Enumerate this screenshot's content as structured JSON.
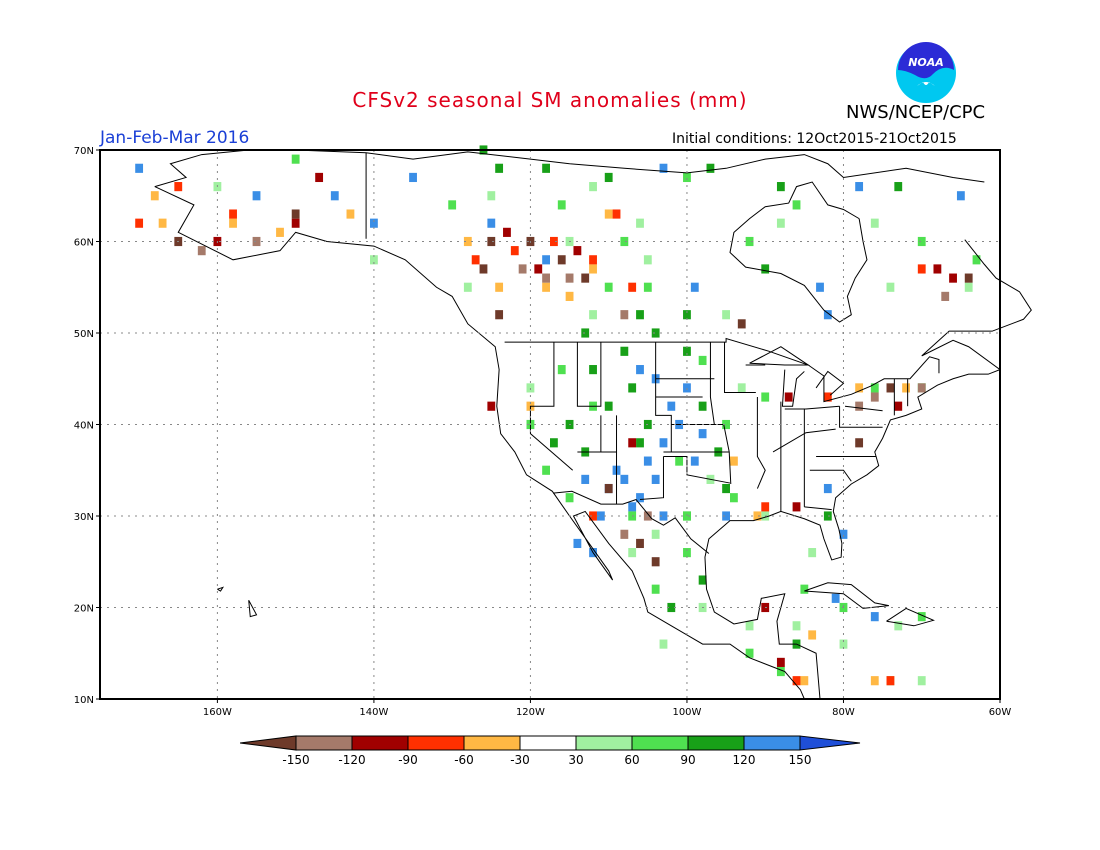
{
  "title": "CFSv2 seasonal SM anomalies (mm)",
  "agency": "NWS/NCEP/CPC",
  "period": "Jan-Feb-Mar 2016",
  "initial_conditions": "Initial conditions: 12Oct2015-21Oct2015",
  "logo_text": "NOAA",
  "map": {
    "lon_range": [
      -175,
      -60
    ],
    "lat_range": [
      10,
      70
    ],
    "lat_ticks": [
      "10N",
      "20N",
      "30N",
      "40N",
      "50N",
      "60N",
      "70N"
    ],
    "lon_ticks": [
      "160W",
      "140W",
      "120W",
      "100W",
      "80W",
      "60W"
    ],
    "grid": "dotted"
  },
  "legend": {
    "labels": [
      "-150",
      "-120",
      "-90",
      "-60",
      "-30",
      "30",
      "60",
      "90",
      "120",
      "150"
    ],
    "colors": [
      "#6e3a2a",
      "#a57a6a",
      "#a00000",
      "#ff3000",
      "#ffb844",
      "#ffffff",
      "#a0f0a0",
      "#4fe050",
      "#18a018",
      "#3a8ee6",
      "#1f4fd8"
    ]
  },
  "anomaly_regions": [
    {
      "color": "#3a8ee6",
      "cells": [
        [
          -107,
          31
        ],
        [
          -106,
          32
        ],
        [
          -108,
          34
        ],
        [
          -105,
          36
        ],
        [
          -103,
          38
        ],
        [
          -101,
          40
        ],
        [
          -102,
          42
        ],
        [
          -100,
          44
        ],
        [
          -104,
          45
        ],
        [
          -109,
          35
        ],
        [
          -110,
          33
        ],
        [
          -111,
          30
        ],
        [
          -104,
          34
        ],
        [
          -98,
          39
        ],
        [
          -99,
          36
        ],
        [
          -106,
          46
        ],
        [
          -112,
          26
        ],
        [
          -114,
          27
        ],
        [
          -113,
          34
        ],
        [
          -103,
          30
        ],
        [
          -95,
          30
        ],
        [
          -82,
          33
        ],
        [
          -80,
          28
        ],
        [
          -76,
          19
        ],
        [
          -81,
          21
        ],
        [
          -82,
          52
        ],
        [
          -83,
          55
        ],
        [
          -99,
          55
        ],
        [
          -140,
          62
        ],
        [
          -125,
          62
        ],
        [
          -118,
          58
        ],
        [
          -135,
          67
        ],
        [
          -145,
          65
        ],
        [
          -155,
          65
        ],
        [
          -170,
          68
        ],
        [
          -103,
          68
        ],
        [
          -78,
          66
        ],
        [
          -65,
          65
        ]
      ]
    },
    {
      "color": "#18a018",
      "cells": [
        [
          -108,
          48
        ],
        [
          -104,
          50
        ],
        [
          -100,
          48
        ],
        [
          -110,
          42
        ],
        [
          -115,
          40
        ],
        [
          -117,
          38
        ],
        [
          -113,
          37
        ],
        [
          -105,
          40
        ],
        [
          -98,
          42
        ],
        [
          -96,
          37
        ],
        [
          -107,
          44
        ],
        [
          -112,
          46
        ],
        [
          -100,
          52
        ],
        [
          -106,
          52
        ],
        [
          -110,
          67
        ],
        [
          -97,
          68
        ],
        [
          -90,
          57
        ],
        [
          -73,
          66
        ],
        [
          -118,
          68
        ],
        [
          -124,
          68
        ],
        [
          -95,
          33
        ],
        [
          -82,
          30
        ],
        [
          -100,
          30
        ],
        [
          -106,
          38
        ],
        [
          -86,
          16
        ],
        [
          -102,
          20
        ],
        [
          -98,
          23
        ],
        [
          -113,
          50
        ],
        [
          -88,
          66
        ],
        [
          -126,
          70
        ]
      ]
    },
    {
      "color": "#4fe050",
      "cells": [
        [
          -105,
          55
        ],
        [
          -110,
          55
        ],
        [
          -98,
          47
        ],
        [
          -112,
          42
        ],
        [
          -118,
          35
        ],
        [
          -115,
          32
        ],
        [
          -101,
          36
        ],
        [
          -95,
          40
        ],
        [
          -90,
          43
        ],
        [
          -76,
          44
        ],
        [
          -70,
          44
        ],
        [
          -116,
          46
        ],
        [
          -94,
          32
        ],
        [
          -100,
          26
        ],
        [
          -104,
          22
        ],
        [
          -85,
          22
        ],
        [
          -80,
          20
        ],
        [
          -70,
          19
        ],
        [
          -92,
          15
        ],
        [
          -88,
          13
        ],
        [
          -120,
          40
        ],
        [
          -108,
          60
        ],
        [
          -92,
          60
        ],
        [
          -86,
          64
        ],
        [
          -70,
          60
        ],
        [
          -63,
          58
        ],
        [
          -150,
          69
        ],
        [
          -100,
          67
        ],
        [
          -116,
          64
        ],
        [
          -130,
          64
        ],
        [
          -100,
          30
        ],
        [
          -107,
          30
        ]
      ]
    },
    {
      "color": "#a0f0a0",
      "cells": [
        [
          -112,
          52
        ],
        [
          -95,
          52
        ],
        [
          -105,
          58
        ],
        [
          -125,
          65
        ],
        [
          -112,
          66
        ],
        [
          -88,
          62
        ],
        [
          -76,
          62
        ],
        [
          -64,
          55
        ],
        [
          -74,
          55
        ],
        [
          -120,
          44
        ],
        [
          -93,
          44
        ],
        [
          -97,
          34
        ],
        [
          -107,
          26
        ],
        [
          -104,
          28
        ],
        [
          -90,
          30
        ],
        [
          -84,
          26
        ],
        [
          -98,
          20
        ],
        [
          -92,
          18
        ],
        [
          -86,
          18
        ],
        [
          -80,
          16
        ],
        [
          -73,
          18
        ],
        [
          -106,
          62
        ],
        [
          -160,
          66
        ],
        [
          -140,
          58
        ],
        [
          -128,
          55
        ],
        [
          -115,
          60
        ],
        [
          -103,
          16
        ],
        [
          -70,
          12
        ],
        [
          -74,
          12
        ]
      ]
    },
    {
      "color": "#ffb844",
      "cells": [
        [
          -167,
          62
        ],
        [
          -158,
          62
        ],
        [
          -152,
          61
        ],
        [
          -128,
          60
        ],
        [
          -124,
          55
        ],
        [
          -118,
          55
        ],
        [
          -120,
          42
        ],
        [
          -112,
          57
        ],
        [
          -115,
          54
        ],
        [
          -91,
          30
        ],
        [
          -94,
          36
        ],
        [
          -72,
          44
        ],
        [
          -78,
          44
        ],
        [
          -84,
          17
        ],
        [
          -85,
          12
        ],
        [
          -76,
          12
        ],
        [
          -143,
          63
        ],
        [
          -110,
          63
        ],
        [
          -168,
          65
        ]
      ]
    },
    {
      "color": "#ff3000",
      "cells": [
        [
          -117,
          60
        ],
        [
          -112,
          58
        ],
        [
          -107,
          55
        ],
        [
          -122,
          59
        ],
        [
          -127,
          58
        ],
        [
          -158,
          63
        ],
        [
          -165,
          66
        ],
        [
          -170,
          62
        ],
        [
          -90,
          31
        ],
        [
          -82,
          43
        ],
        [
          -70,
          57
        ],
        [
          -112,
          30
        ],
        [
          -109,
          63
        ],
        [
          -74,
          12
        ],
        [
          -86,
          12
        ]
      ]
    },
    {
      "color": "#a00000",
      "cells": [
        [
          -119,
          57
        ],
        [
          -114,
          59
        ],
        [
          -123,
          61
        ],
        [
          -160,
          60
        ],
        [
          -150,
          62
        ],
        [
          -147,
          67
        ],
        [
          -125,
          42
        ],
        [
          -87,
          43
        ],
        [
          -73,
          42
        ],
        [
          -68,
          57
        ],
        [
          -66,
          56
        ],
        [
          -90,
          20
        ],
        [
          -88,
          14
        ],
        [
          -107,
          38
        ],
        [
          -86,
          31
        ]
      ]
    },
    {
      "color": "#6e3a2a",
      "cells": [
        [
          -116,
          58
        ],
        [
          -113,
          56
        ],
        [
          -120,
          60
        ],
        [
          -165,
          60
        ],
        [
          -150,
          63
        ],
        [
          -125,
          60
        ],
        [
          -106,
          27
        ],
        [
          -104,
          25
        ],
        [
          -78,
          38
        ],
        [
          -64,
          56
        ],
        [
          -124,
          52
        ],
        [
          -93,
          51
        ],
        [
          -74,
          44
        ],
        [
          -126,
          57
        ],
        [
          -110,
          33
        ]
      ]
    },
    {
      "color": "#a57a6a",
      "cells": [
        [
          -118,
          56
        ],
        [
          -115,
          56
        ],
        [
          -121,
          57
        ],
        [
          -162,
          59
        ],
        [
          -155,
          60
        ],
        [
          -108,
          28
        ],
        [
          -105,
          30
        ],
        [
          -78,
          42
        ],
        [
          -76,
          43
        ],
        [
          -67,
          54
        ],
        [
          -70,
          44
        ],
        [
          -108,
          52
        ]
      ]
    }
  ]
}
